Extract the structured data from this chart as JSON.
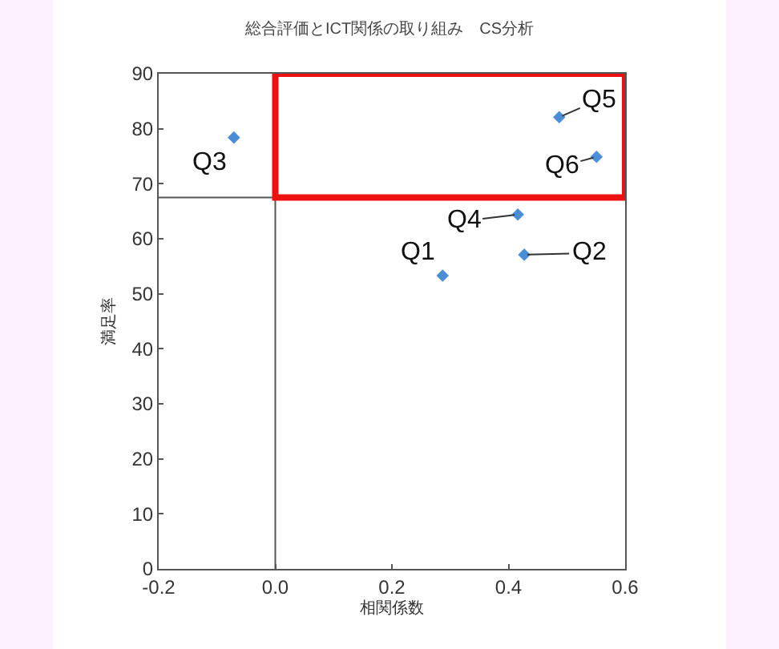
{
  "chart_data": {
    "type": "scatter",
    "title": "総合評価とICT関係の取り組み　CS分析",
    "xlabel": "相関係数",
    "ylabel": "満足率",
    "x": [
      0.287,
      0.427,
      -0.071,
      0.416,
      0.487,
      0.551
    ],
    "values": [
      53.3,
      57.1,
      78.4,
      64.4,
      82.1,
      74.9
    ],
    "color": "#4a8fd6",
    "marker": "diamond",
    "xlim": [
      -0.2,
      0.6
    ],
    "xticks": [
      {
        "value": -0.2,
        "label": "-0.2"
      },
      {
        "value": 0,
        "label": "0.0"
      },
      {
        "value": 0.2,
        "label": "0.2"
      },
      {
        "value": 0.4,
        "label": "0.4"
      },
      {
        "value": 0.6,
        "label": "0.6"
      }
    ],
    "ylim": [
      0,
      90
    ],
    "yticks": [
      0,
      10,
      20,
      30,
      40,
      50,
      60,
      70,
      80,
      90
    ],
    "grid": false,
    "ref_lines": [
      {
        "axis": "x",
        "value": 0,
        "color": "#555555"
      },
      {
        "axis": "y",
        "value": 67.5,
        "color": "#555555"
      }
    ],
    "annotations": [
      {
        "text": "Q1",
        "x": 0.287,
        "y": 53.3
      },
      {
        "text": "Q2",
        "x": 0.427,
        "y": 57.1
      },
      {
        "text": "Q3",
        "x": -0.071,
        "y": 78.4
      },
      {
        "text": "Q4",
        "x": 0.416,
        "y": 64.4
      },
      {
        "text": "Q5",
        "x": 0.487,
        "y": 82.1
      },
      {
        "text": "Q6",
        "x": 0.551,
        "y": 74.9
      }
    ]
  }
}
